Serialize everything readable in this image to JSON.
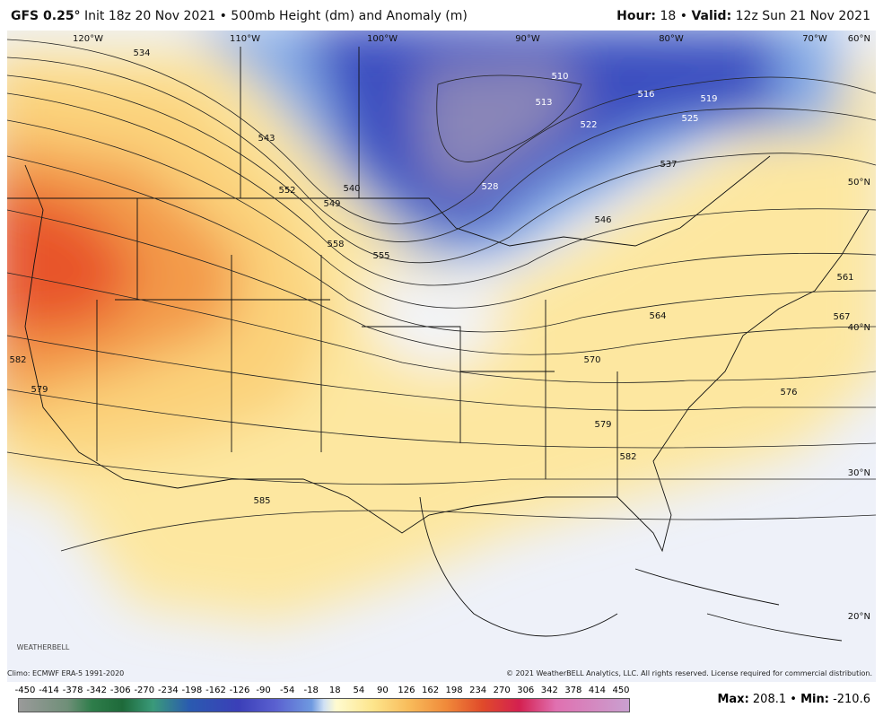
{
  "header": {
    "model": "GFS 0.25°",
    "description": "Init 18z 20 Nov 2021 • 500mb Height (dm) and Anomaly (m)",
    "hour_label": "Hour:",
    "hour": "18",
    "separator": "•",
    "valid_label": "Valid:",
    "valid": "12z Sun 21 Nov 2021"
  },
  "map": {
    "longitudes": [
      "120°W",
      "110°W",
      "100°W",
      "90°W",
      "80°W",
      "70°W"
    ],
    "latitudes": [
      "60°N",
      "50°N",
      "40°N",
      "30°N",
      "20°N"
    ],
    "contour_labels": [
      "534",
      "543",
      "552",
      "549",
      "540",
      "558",
      "555",
      "510",
      "513",
      "516",
      "519",
      "522",
      "525",
      "528",
      "537",
      "546",
      "561",
      "564",
      "567",
      "570",
      "576",
      "579",
      "582",
      "585",
      "582",
      "579"
    ],
    "logo": "WEATHERBELL"
  },
  "footer": {
    "climo": "Climo: ECMWF ERA-5 1991-2020",
    "copyright": "© 2021 WeatherBELL Analytics, LLC. All rights reserved. License required for commercial distribution."
  },
  "colorbar": {
    "ticks": [
      -450,
      -414,
      -378,
      -342,
      -306,
      -270,
      -234,
      -198,
      -162,
      -126,
      -90,
      -54,
      -18,
      18,
      54,
      90,
      126,
      162,
      198,
      234,
      270,
      306,
      342,
      378,
      414,
      450
    ]
  },
  "stats": {
    "max_label": "Max:",
    "max": 208.1,
    "separator": "•",
    "min_label": "Min:",
    "min": -210.6
  }
}
